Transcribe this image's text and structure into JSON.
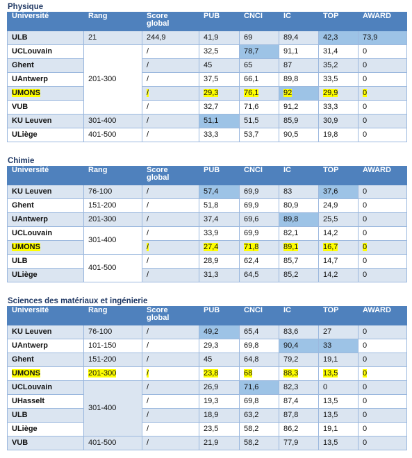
{
  "columns": [
    "Université",
    "Rang",
    "Score global",
    "PUB",
    "CNCI",
    "IC",
    "TOP",
    "AWARD"
  ],
  "sections": [
    {
      "title": "Physique",
      "rows": [
        {
          "uni": "ULB",
          "rang": "21",
          "score": "244,9",
          "pub": "41,9",
          "cnci": "69",
          "ic": "89,4",
          "top": "42,3",
          "award": "73,9",
          "hl": [
            "top",
            "award"
          ]
        },
        {
          "uni": "UCLouvain",
          "rang": "201-300",
          "score": "/",
          "pub": "32,5",
          "cnci": "78,7",
          "ic": "91,1",
          "top": "31,4",
          "award": "0",
          "hl": [
            "cnci"
          ]
        },
        {
          "uni": "Ghent",
          "rang": "",
          "score": "/",
          "pub": "45",
          "cnci": "65",
          "ic": "87",
          "top": "35,2",
          "award": "0",
          "hl": []
        },
        {
          "uni": "UAntwerp",
          "rang": "",
          "score": "/",
          "pub": "37,5",
          "cnci": "66,1",
          "ic": "89,8",
          "top": "33,5",
          "award": "0",
          "hl": []
        },
        {
          "uni": "UMONS",
          "rang": "",
          "score": "/",
          "pub": "29,3",
          "cnci": "76,1",
          "ic": "92",
          "top": "29,9",
          "award": "0",
          "hl": [
            "ic"
          ],
          "yellow": true
        },
        {
          "uni": "VUB",
          "rang": "",
          "score": "/",
          "pub": "32,7",
          "cnci": "71,6",
          "ic": "91,2",
          "top": "33,3",
          "award": "0",
          "hl": []
        },
        {
          "uni": "KU Leuven",
          "rang": "301-400",
          "score": "/",
          "pub": "51,1",
          "cnci": "51,5",
          "ic": "85,9",
          "top": "30,9",
          "award": "0",
          "hl": [
            "pub"
          ]
        },
        {
          "uni": "ULiège",
          "rang": "401-500",
          "score": "/",
          "pub": "33,3",
          "cnci": "53,7",
          "ic": "90,5",
          "top": "19,8",
          "award": "0",
          "hl": []
        }
      ]
    },
    {
      "title": "Chimie",
      "rows": [
        {
          "uni": "KU Leuven",
          "rang": "76-100",
          "score": "/",
          "pub": "57,4",
          "cnci": "69,9",
          "ic": "83",
          "top": "37,6",
          "award": "0",
          "hl": [
            "pub",
            "top"
          ]
        },
        {
          "uni": "Ghent",
          "rang": "151-200",
          "score": "/",
          "pub": "51,8",
          "cnci": "69,9",
          "ic": "80,9",
          "top": "24,9",
          "award": "0",
          "hl": []
        },
        {
          "uni": "UAntwerp",
          "rang": "201-300",
          "score": "/",
          "pub": "37,4",
          "cnci": "69,6",
          "ic": "89,8",
          "top": "25,5",
          "award": "0",
          "hl": [
            "ic"
          ]
        },
        {
          "uni": "UCLouvain",
          "rang": "301-400",
          "score": "/",
          "pub": "33,9",
          "cnci": "69,9",
          "ic": "82,1",
          "top": "14,2",
          "award": "0",
          "hl": []
        },
        {
          "uni": "UMONS",
          "rang": "",
          "score": "/",
          "pub": "27,4",
          "cnci": "71,8",
          "ic": "89,1",
          "top": "16,7",
          "award": "0",
          "hl": [],
          "yellow": true
        },
        {
          "uni": "ULB",
          "rang": "401-500",
          "score": "/",
          "pub": "28,9",
          "cnci": "62,4",
          "ic": "85,7",
          "top": "14,7",
          "award": "0",
          "hl": []
        },
        {
          "uni": "ULiège",
          "rang": "",
          "score": "/",
          "pub": "31,3",
          "cnci": "64,5",
          "ic": "85,2",
          "top": "14,2",
          "award": "0",
          "hl": []
        }
      ]
    },
    {
      "title": "Sciences des matériaux et ingénierie",
      "rows": [
        {
          "uni": "KU Leuven",
          "rang": "76-100",
          "score": "/",
          "pub": "49,2",
          "cnci": "65,4",
          "ic": "83,6",
          "top": "27",
          "award": "0",
          "hl": [
            "pub"
          ]
        },
        {
          "uni": "UAntwerp",
          "rang": "101-150",
          "score": "/",
          "pub": "29,3",
          "cnci": "69,8",
          "ic": "90,4",
          "top": "33",
          "award": "0",
          "hl": [
            "ic",
            "top"
          ]
        },
        {
          "uni": "Ghent",
          "rang": "151-200",
          "score": "/",
          "pub": "45",
          "cnci": "64,8",
          "ic": "79,2",
          "top": "19,1",
          "award": "0",
          "hl": []
        },
        {
          "uni": "UMONS",
          "rang": "201-300",
          "score": "/",
          "pub": "23,8",
          "cnci": "68",
          "ic": "88,3",
          "top": "13,5",
          "award": "0",
          "hl": [],
          "yellow": true,
          "yellowRang": true
        },
        {
          "uni": "UCLouvain",
          "rang": "301-400",
          "score": "/",
          "pub": "26,9",
          "cnci": "71,6",
          "ic": "82,3",
          "top": "0",
          "award": "0",
          "hl": [
            "cnci"
          ]
        },
        {
          "uni": "UHasselt",
          "rang": "",
          "score": "/",
          "pub": "19,3",
          "cnci": "69,8",
          "ic": "87,4",
          "top": "13,5",
          "award": "0",
          "hl": []
        },
        {
          "uni": "ULB",
          "rang": "",
          "score": "/",
          "pub": "18,9",
          "cnci": "63,2",
          "ic": "87,8",
          "top": "13,5",
          "award": "0",
          "hl": []
        },
        {
          "uni": "ULiège",
          "rang": "",
          "score": "/",
          "pub": "23,5",
          "cnci": "58,2",
          "ic": "86,2",
          "top": "19,1",
          "award": "0",
          "hl": []
        },
        {
          "uni": "VUB",
          "rang": "401-500",
          "score": "/",
          "pub": "21,9",
          "cnci": "58,2",
          "ic": "77,9",
          "top": "13,5",
          "award": "0",
          "hl": []
        }
      ]
    }
  ]
}
